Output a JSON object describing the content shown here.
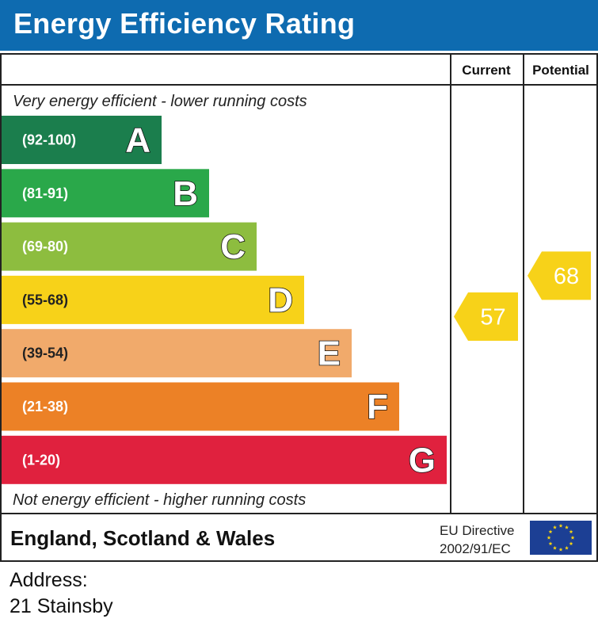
{
  "header": {
    "title": "Energy Efficiency Rating"
  },
  "chart_data": {
    "type": "bar",
    "title": "Energy Efficiency Rating",
    "columns": {
      "current": "Current",
      "potential": "Potential"
    },
    "top_caption": "Very energy efficient - lower running costs",
    "bottom_caption": "Not energy efficient - higher running costs",
    "bands": [
      {
        "letter": "A",
        "range": "(92-100)",
        "min": 92,
        "max": 100,
        "color": "#1b7e4d"
      },
      {
        "letter": "B",
        "range": "(81-91)",
        "min": 81,
        "max": 91,
        "color": "#2aa84a"
      },
      {
        "letter": "C",
        "range": "(69-80)",
        "min": 69,
        "max": 80,
        "color": "#8dbd3f"
      },
      {
        "letter": "D",
        "range": "(55-68)",
        "min": 55,
        "max": 68,
        "color": "#f7d219"
      },
      {
        "letter": "E",
        "range": "(39-54)",
        "min": 39,
        "max": 54,
        "color": "#f1aa6b"
      },
      {
        "letter": "F",
        "range": "(21-38)",
        "min": 21,
        "max": 38,
        "color": "#ec8126"
      },
      {
        "letter": "G",
        "range": "(1-20)",
        "min": 1,
        "max": 20,
        "color": "#e0213e"
      }
    ],
    "current": 57,
    "potential": 68,
    "indicator_color": "#f7d219"
  },
  "footer": {
    "region": "England, Scotland & Wales",
    "directive_line1": "EU Directive",
    "directive_line2": "2002/91/EC",
    "flag_icon": "eu-flag-icon"
  },
  "address": {
    "label": "Address:",
    "value": "21 Stainsby"
  }
}
